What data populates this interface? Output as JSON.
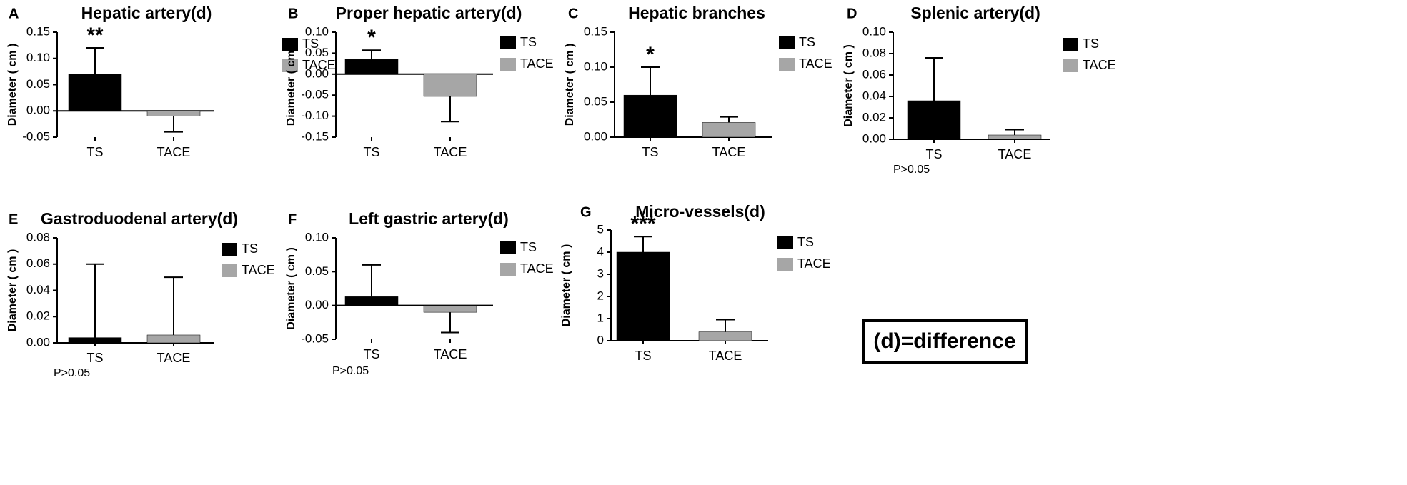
{
  "chart_data": [
    {
      "type": "bar",
      "panel_label": "A",
      "title": "Hepatic artery(d)",
      "y_label": "Diameter ( cm )",
      "categories": [
        "TS",
        "TACE"
      ],
      "values": [
        0.07,
        -0.01
      ],
      "errors": [
        0.05,
        0.03
      ],
      "colors": [
        "#000000",
        "#a6a6a6"
      ],
      "annotation": "**",
      "ylim": [
        -0.05,
        0.15
      ],
      "yticks": [
        -0.05,
        {
          "value": 0,
          "label": "0.00"
        },
        0.05,
        {
          "value": 0.1,
          "label": "0.10"
        },
        0.15
      ],
      "grid": false
    },
    {
      "type": "bar",
      "panel_label": "B",
      "title": "Proper hepatic artery(d)",
      "y_label": "Diameter ( cm )",
      "categories": [
        "TS",
        "TACE"
      ],
      "values": [
        0.035,
        -0.053
      ],
      "errors": [
        0.022,
        0.06
      ],
      "colors": [
        "#000000",
        "#a6a6a6"
      ],
      "annotation": "*",
      "ylim": [
        -0.15,
        0.1
      ],
      "yticks": [
        -0.15,
        {
          "value": -0.1,
          "label": "-0.10"
        },
        -0.05,
        {
          "value": 0,
          "label": "0.00"
        },
        0.05,
        {
          "value": 0.1,
          "label": "0.10"
        }
      ],
      "grid": false
    },
    {
      "type": "bar",
      "panel_label": "C",
      "title": "Hepatic branches",
      "y_label": "Diameter ( cm )",
      "categories": [
        "TS",
        "TACE"
      ],
      "values": [
        0.06,
        0.021
      ],
      "errors": [
        0.04,
        0.008
      ],
      "colors": [
        "#000000",
        "#a6a6a6"
      ],
      "annotation": "*",
      "ylim": [
        0,
        0.15
      ],
      "yticks": [
        {
          "value": 0,
          "label": "0.00"
        },
        0.05,
        {
          "value": 0.1,
          "label": "0.10"
        },
        0.15
      ],
      "grid": false
    },
    {
      "type": "bar",
      "panel_label": "D",
      "title": "Splenic artery(d)",
      "y_label": "Diameter ( cm )",
      "categories": [
        "TS",
        "TACE"
      ],
      "values": [
        0.036,
        0.004
      ],
      "errors": [
        0.04,
        0.005
      ],
      "colors": [
        "#000000",
        "#a6a6a6"
      ],
      "note": "P>0.05",
      "ylim": [
        0,
        0.1
      ],
      "yticks": [
        {
          "value": 0,
          "label": "0.00"
        },
        0.02,
        0.04,
        0.06,
        0.08,
        {
          "value": 0.1,
          "label": "0.10"
        }
      ],
      "grid": false
    },
    {
      "type": "bar",
      "panel_label": "E",
      "title": "Gastroduodenal artery(d)",
      "y_label": "Diameter ( cm )",
      "categories": [
        "TS",
        "TACE"
      ],
      "values": [
        0.004,
        0.006
      ],
      "errors": [
        0.056,
        0.044
      ],
      "colors": [
        "#000000",
        "#a6a6a6"
      ],
      "note": "P>0.05",
      "ylim": [
        0,
        0.08
      ],
      "yticks": [
        {
          "value": 0,
          "label": "0.00"
        },
        0.02,
        0.04,
        0.06,
        0.08
      ],
      "grid": false
    },
    {
      "type": "bar",
      "panel_label": "F",
      "title": "Left gastric artery(d)",
      "y_label": "Diameter ( cm )",
      "categories": [
        "TS",
        "TACE"
      ],
      "values": [
        0.013,
        -0.01
      ],
      "errors": [
        0.047,
        0.03
      ],
      "colors": [
        "#000000",
        "#a6a6a6"
      ],
      "note": "P>0.05",
      "ylim": [
        -0.05,
        0.1
      ],
      "yticks": [
        -0.05,
        {
          "value": 0,
          "label": "0.00"
        },
        0.05,
        {
          "value": 0.1,
          "label": "0.10"
        }
      ],
      "grid": false
    },
    {
      "type": "bar",
      "panel_label": "G",
      "title": "Micro-vessels(d)",
      "y_label": "Diameter ( cm )",
      "categories": [
        "TS",
        "TACE"
      ],
      "values": [
        4.0,
        0.4
      ],
      "errors": [
        0.7,
        0.55
      ],
      "colors": [
        "#000000",
        "#a6a6a6"
      ],
      "annotation": "***",
      "ylim": [
        0,
        5
      ],
      "yticks": [
        0,
        1,
        2,
        3,
        4,
        5
      ],
      "grid": false
    }
  ],
  "footnote": "(d)=difference"
}
